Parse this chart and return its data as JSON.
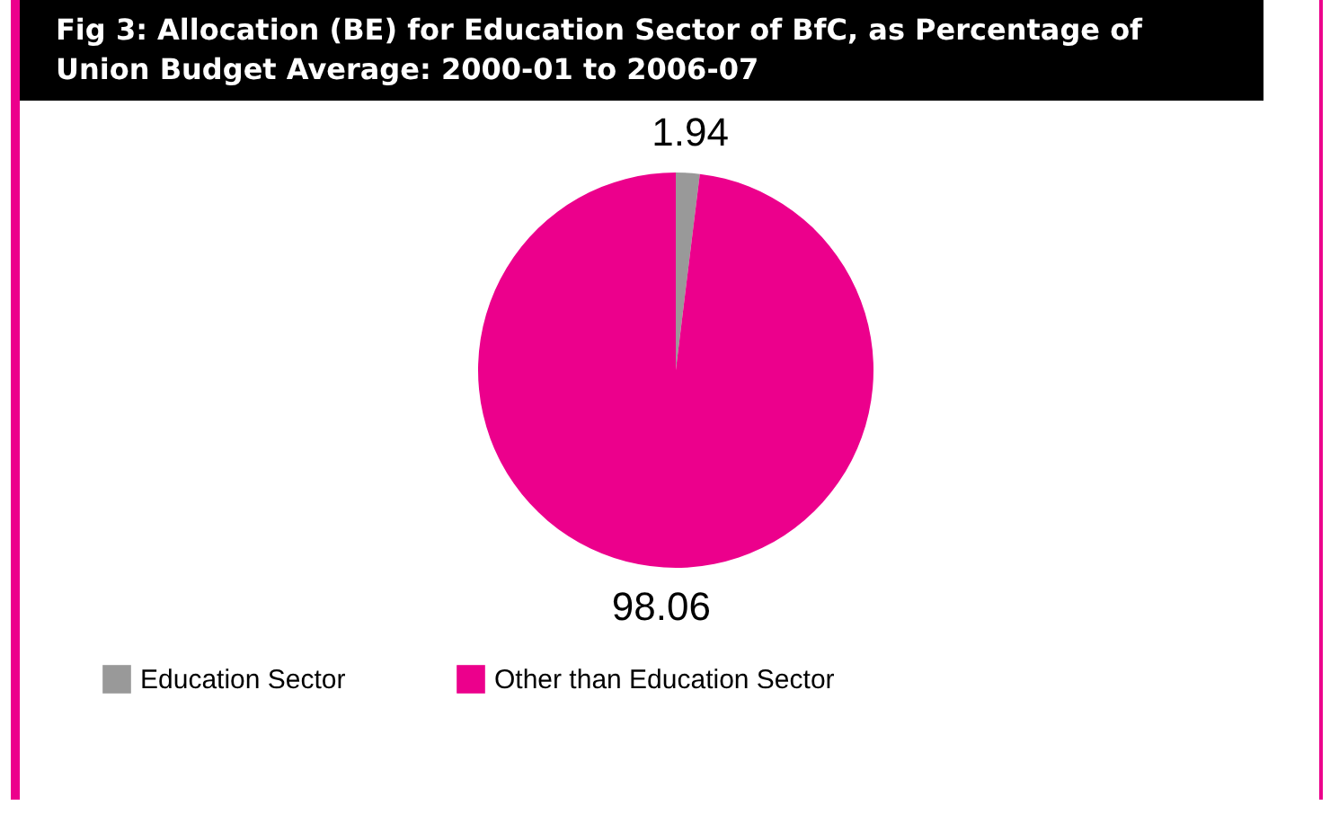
{
  "chart_data": {
    "type": "pie",
    "title": "Fig 3: Allocation (BE) for Education Sector of BfC, as Percentage of Union Budget Average: 2000-01 to 2006-07",
    "categories": [
      "Education Sector",
      "Other than Education Sector"
    ],
    "values": [
      1.94,
      98.06
    ],
    "colors": [
      "#999999",
      "#ec008c"
    ],
    "data_labels": true,
    "legend": "bottom"
  }
}
